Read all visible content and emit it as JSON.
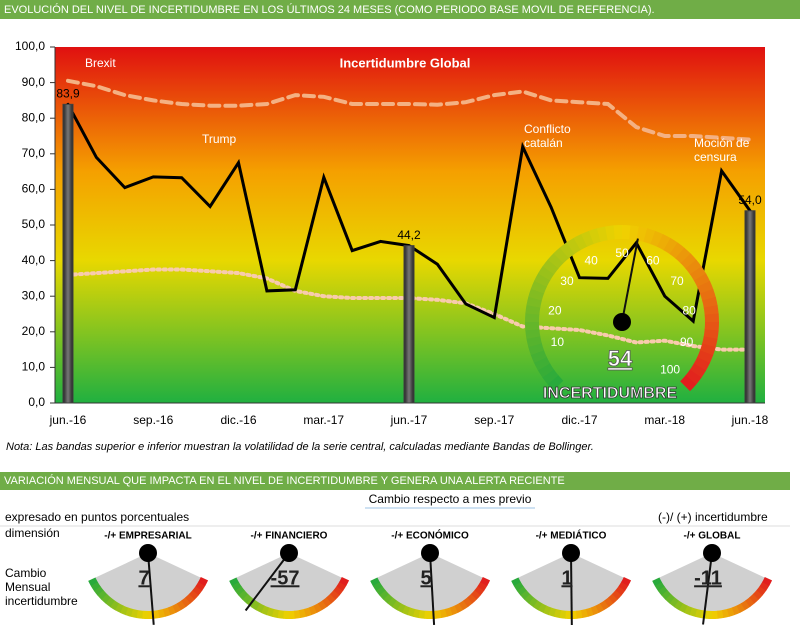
{
  "header": "EVOLUCIÓN DEL NIVEL DE INCERTIDUMBRE EN LOS ÚLTIMOS 24 MESES (COMO PERIODO BASE MOVIL DE REFERENCIA).",
  "note": "Nota: Las bandas superior e inferior muestran la volatilidad de la serie central, calculadas mediante Bandas de Bollinger.",
  "section": {
    "header": "VARIACIÓN MENSUAL QUE IMPACTA EN EL NIVEL DE INCERTIDUMBRE Y GENERA UNA ALERTA RECIENTE",
    "subheader": "Cambio respecto a mes previo",
    "units": "expresado en puntos porcentuales",
    "dimension": "dimensión",
    "legend": "(-)/ (+) incertidumbre",
    "row_label": "Cambio Mensual incertidumbre"
  },
  "chart_data": [
    {
      "type": "line",
      "title": "Incertidumbre Global",
      "categories": [
        "jun.-16",
        null,
        null,
        "sep.-16",
        null,
        null,
        "dic.-16",
        null,
        null,
        "mar.-17",
        null,
        null,
        "jun.-17",
        null,
        null,
        "sep.-17",
        null,
        null,
        "dic.-17",
        null,
        null,
        "mar.-18",
        null,
        null,
        "jun.-18"
      ],
      "ylim": [
        0,
        100
      ],
      "yticks": [
        {
          "value": 0,
          "label": "0,0"
        },
        {
          "value": 10,
          "label": "10,0"
        },
        {
          "value": 20,
          "label": "20,0"
        },
        {
          "value": 30,
          "label": "30,0"
        },
        {
          "value": 40,
          "label": "40,0"
        },
        {
          "value": 50,
          "label": "50,0"
        },
        {
          "value": 60,
          "label": "60,0"
        },
        {
          "value": 70,
          "label": "70,0"
        },
        {
          "value": 80,
          "label": "80,0"
        },
        {
          "value": 90,
          "label": "90,0"
        },
        {
          "value": 100,
          "label": "100,0"
        }
      ],
      "series": [
        {
          "color": "#f4b183",
          "style": "dashed",
          "values": [
            90.5,
            89,
            86.5,
            85,
            84,
            83.5,
            83.5,
            84,
            86.5,
            86,
            84,
            84,
            84,
            83.8,
            84.5,
            86.5,
            87.5,
            85,
            84.5,
            84,
            77.5,
            75,
            75,
            74.5,
            74
          ]
        },
        {
          "color": "#f8cbad",
          "style": "dotted",
          "values": [
            36,
            36.5,
            37,
            37.5,
            37.5,
            37,
            36.5,
            35,
            31.5,
            30,
            29.5,
            29.5,
            29.5,
            29,
            28,
            25,
            21.5,
            21,
            20.5,
            19,
            17,
            17.5,
            16,
            15,
            15
          ]
        },
        {
          "color": "#000000",
          "style": "solid",
          "values": [
            83.9,
            69,
            60.5,
            63.5,
            63.3,
            55.2,
            67.5,
            31.5,
            31.8,
            63.4,
            42.8,
            45.4,
            44.2,
            39,
            27.8,
            24,
            72,
            55,
            35.2,
            35,
            45,
            30,
            23,
            65.2,
            54.0
          ]
        },
        {
          "type": "bar",
          "color": "#404040",
          "values": [
            83.9,
            null,
            null,
            null,
            null,
            null,
            null,
            null,
            null,
            null,
            null,
            null,
            44.2,
            null,
            null,
            null,
            null,
            null,
            null,
            null,
            null,
            null,
            null,
            null,
            54.0
          ],
          "value_labels": [
            "83,9",
            null,
            null,
            null,
            null,
            null,
            null,
            null,
            null,
            null,
            null,
            null,
            "44,2",
            null,
            null,
            null,
            null,
            null,
            null,
            null,
            null,
            null,
            null,
            null,
            "54,0"
          ]
        }
      ],
      "annotations": [
        "Brexit",
        "Trump",
        "Conflicto catalán",
        "Moción de censura"
      ]
    },
    {
      "type": "gauge",
      "value": 54,
      "range": [
        0,
        100
      ],
      "ticks": [
        10,
        20,
        30,
        40,
        50,
        60,
        70,
        80,
        90,
        100
      ],
      "label": "INCERTIDUMBRE"
    },
    {
      "type": "dial",
      "title": "-/+ EMPRESARIAL",
      "value": 7,
      "range": [
        -100,
        100
      ]
    },
    {
      "type": "dial",
      "title": "-/+ FINANCIERO",
      "value": -57,
      "range": [
        -100,
        100
      ]
    },
    {
      "type": "dial",
      "title": "-/+ ECONÓMICO",
      "value": 5,
      "range": [
        -100,
        100
      ]
    },
    {
      "type": "dial",
      "title": "-/+ MEDIÁTICO",
      "value": 1,
      "range": [
        -100,
        100
      ]
    },
    {
      "type": "dial",
      "title": "-/+ GLOBAL",
      "value": -11,
      "range": [
        -100,
        100
      ]
    }
  ]
}
